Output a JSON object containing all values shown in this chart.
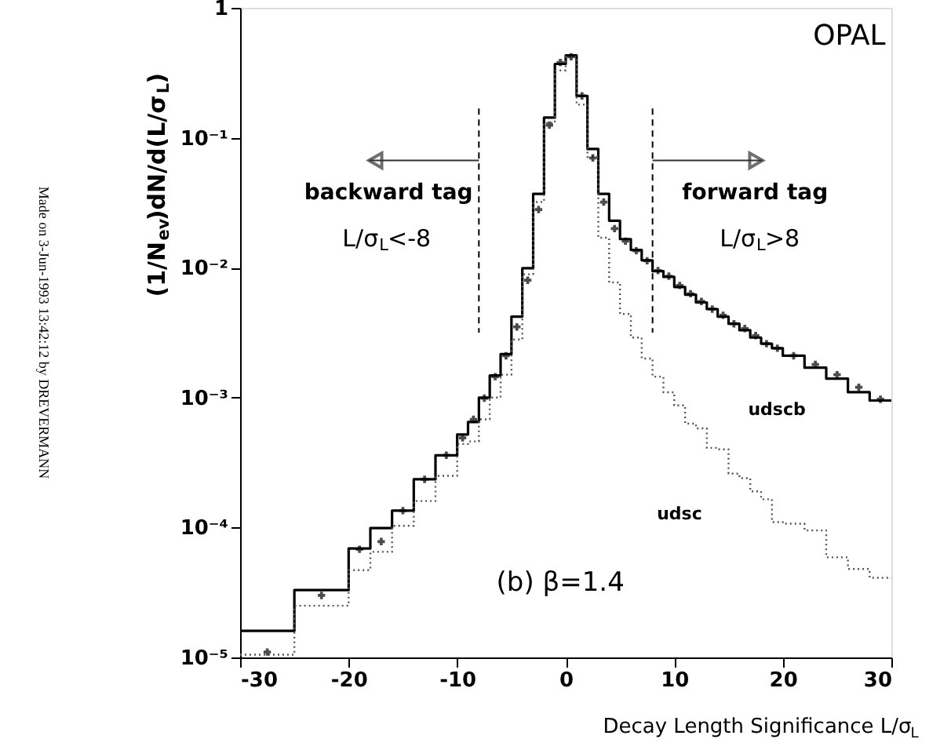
{
  "chart_data": {
    "type": "histogram",
    "xlabel": "Decay Length Significance L/σ$_{L}$",
    "ylabel": "(1/N$_{ev}$)dN/d(L/σ$_{L}$)",
    "bins": [
      -30,
      -25,
      -20,
      -18,
      -16,
      -14,
      -12,
      -10,
      -9,
      -8,
      -7,
      -6,
      -5,
      -4,
      -3,
      -2,
      -1,
      0,
      1,
      2,
      3,
      4,
      5,
      6,
      7,
      8,
      9,
      10,
      11,
      12,
      13,
      14,
      15,
      16,
      17,
      18,
      19,
      20,
      22,
      24,
      26,
      28,
      30
    ],
    "series": [
      {
        "name": "udscb",
        "color": "#000000",
        "line_style": "solid",
        "values": [
          1.6e-05,
          3.3e-05,
          6.9e-05,
          9.9e-05,
          0.000135,
          0.000235,
          0.00036,
          0.00052,
          0.00065,
          0.001,
          0.00148,
          0.00216,
          0.0042,
          0.0099,
          0.037,
          0.143,
          0.37,
          0.43,
          0.21,
          0.082,
          0.037,
          0.023,
          0.0166,
          0.0137,
          0.0114,
          0.0094,
          0.0085,
          0.0071,
          0.0062,
          0.0054,
          0.0048,
          0.0042,
          0.0037,
          0.0033,
          0.0029,
          0.0026,
          0.0024,
          0.0021,
          0.0017,
          0.0014,
          0.0011,
          0.00095
        ]
      },
      {
        "name": "udsc",
        "color": "#555555",
        "line_style": "dotted",
        "values": [
          1.05e-05,
          2.5e-05,
          4.7e-05,
          6.5e-05,
          0.000103,
          0.00016,
          0.00025,
          0.00044,
          0.00046,
          0.00068,
          0.001,
          0.0015,
          0.0028,
          0.0089,
          0.032,
          0.13,
          0.33,
          0.42,
          0.18,
          0.071,
          0.017,
          0.0077,
          0.0044,
          0.0029,
          0.002,
          0.00145,
          0.0011,
          0.00087,
          0.00063,
          0.00058,
          0.00041,
          0.0004,
          0.00026,
          0.00024,
          0.00019,
          0.000165,
          0.00011,
          0.000107,
          9.5e-05,
          5.9e-05,
          4.8e-05,
          4.1e-05
        ]
      },
      {
        "type": "scatter",
        "color": "#000000",
        "x": [
          -27.5,
          -22.5,
          -19,
          -17,
          -15,
          -13,
          -11,
          -9.5,
          -8.5,
          -7.5,
          -6.5,
          -5.5,
          -4.5,
          -3.5,
          -2.5,
          -1.5,
          -0.5,
          0.5,
          1.5,
          2.5,
          3.5,
          4.5,
          5.5,
          6.5,
          7.5,
          8.5,
          9.5,
          10.5,
          11.5,
          12.5,
          13.5,
          14.5,
          15.5,
          16.5,
          17.5,
          18.5,
          19.5,
          21,
          23,
          25,
          27,
          29
        ],
        "values": [
          1.1e-05,
          3e-05,
          6.8e-05,
          7.8e-05,
          0.000135,
          0.000235,
          0.00036,
          0.00049,
          0.00068,
          0.00099,
          0.00145,
          0.0021,
          0.0035,
          0.008,
          0.028,
          0.125,
          0.38,
          0.42,
          0.21,
          0.07,
          0.032,
          0.02,
          0.016,
          0.0135,
          0.0113,
          0.0095,
          0.0086,
          0.0073,
          0.0063,
          0.0055,
          0.0048,
          0.0043,
          0.0037,
          0.0034,
          0.003,
          0.0026,
          0.0024,
          0.0021,
          0.0018,
          0.0015,
          0.0012,
          0.00097
        ]
      }
    ],
    "marker": "cross",
    "log": true,
    "xlim": [
      -30,
      30
    ],
    "xticks": [
      -30,
      -20,
      -10,
      0,
      10,
      20,
      30
    ],
    "ylim": [
      1e-05,
      1
    ],
    "yticks": [
      {
        "value": 1e-05,
        "label": "10⁻⁵"
      },
      {
        "value": 0.0001,
        "label": "10⁻⁴"
      },
      {
        "value": 0.001,
        "label": "10⁻³"
      },
      {
        "value": 0.01,
        "label": "10⁻²"
      },
      {
        "value": 0.1,
        "label": "10⁻¹"
      },
      1
    ],
    "grid": false,
    "ref_lines": [
      {
        "axis": "x",
        "value": -8,
        "line_style": "dashed"
      },
      {
        "axis": "x",
        "value": 8,
        "line_style": "dashed"
      }
    ],
    "annotations": [
      "OPAL",
      "backward tag",
      "L/σ$_{L}$<-8",
      "forward tag",
      "L/σ$_{L}$>8",
      "(b)  β=1.4",
      "Made on 3-Jun-1993 13:42:12 by DREVERMANN"
    ]
  }
}
